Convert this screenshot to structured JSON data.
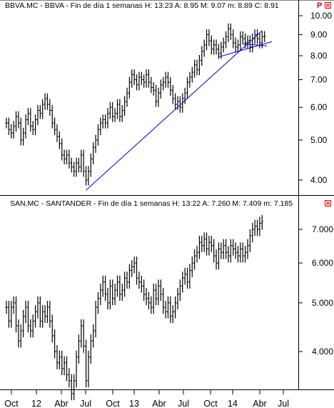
{
  "colors": {
    "background": "#ffffff",
    "bars": "#000000",
    "trendline": "#0000cc",
    "flag_p": "#e00000",
    "flag_box": "#e00000"
  },
  "top_panel": {
    "header": {
      "text": "BBVA.MC - BBVA - Fin de día 1 semanas  H: 13:23  A: 8.95  M: 9.07  m: 8.89  C: 8.91",
      "flag": "P",
      "box_icon": "close-box-icon"
    }
  },
  "bottom_panel": {
    "header": {
      "text": "SAN.MC - SANTANDER - Fin de día 1 semanas  H: 13:22  A: 7.260  M: 7.409  m: 7.185",
      "box_icon": "close-box-icon"
    }
  },
  "chart_data": [
    {
      "type": "ohlc",
      "symbol": "BBVA.MC",
      "name": "BBVA",
      "period": "Fin de día 1 semanas",
      "last_bar": {
        "time": "13:23",
        "open": 8.95,
        "high": 9.07,
        "low": 8.89,
        "close": 8.91
      },
      "y_scale": "log",
      "ylim": [
        3.75,
        10.2
      ],
      "y_ticks": [
        4.0,
        5.0,
        6.0,
        7.0,
        8.0,
        9.0,
        10.0
      ],
      "y_tick_labels": [
        "4.00",
        "5.00",
        "6.00",
        "7.00",
        "8.00",
        "9.00",
        "10.00"
      ],
      "x_labels": [
        "Oct",
        "12",
        "Abr",
        "Jul",
        "Oct",
        "13",
        "Abr",
        "Jul",
        "Oct",
        "14",
        "Abr",
        "Jul"
      ],
      "closes": [
        5.5,
        5.3,
        5.2,
        5.4,
        5.7,
        5.5,
        5.0,
        5.2,
        5.6,
        5.8,
        5.4,
        5.3,
        5.6,
        5.9,
        5.8,
        6.1,
        6.3,
        6.1,
        5.9,
        5.5,
        5.3,
        5.1,
        4.9,
        4.6,
        4.5,
        4.6,
        4.4,
        4.3,
        4.2,
        4.4,
        4.3,
        4.6,
        4.2,
        4.0,
        4.2,
        4.5,
        4.8,
        5.0,
        5.3,
        5.5,
        5.6,
        5.5,
        5.8,
        6.0,
        5.7,
        5.8,
        6.1,
        5.7,
        5.9,
        6.2,
        6.5,
        6.9,
        7.2,
        7.0,
        6.8,
        7.1,
        7.0,
        6.9,
        7.2,
        6.9,
        6.7,
        6.6,
        6.2,
        6.5,
        6.8,
        6.9,
        7.1,
        6.9,
        6.6,
        6.3,
        6.1,
        6.2,
        6.0,
        6.3,
        6.5,
        6.9,
        7.1,
        7.3,
        7.6,
        7.4,
        7.8,
        8.2,
        8.5,
        9.0,
        8.7,
        8.3,
        8.5,
        8.3,
        8.1,
        8.4,
        8.6,
        8.9,
        9.3,
        9.0,
        8.6,
        8.4,
        8.5,
        8.9,
        8.8,
        8.6,
        8.7,
        8.4,
        8.8,
        9.0,
        8.8,
        8.6,
        8.9,
        8.91
      ],
      "trendlines": [
        {
          "from": {
            "bar": 33,
            "value": 3.78
          },
          "to": {
            "bar": 106,
            "value": 9.2
          }
        },
        {
          "from": {
            "bar": 88,
            "value": 7.95
          },
          "to": {
            "bar": 110,
            "value": 8.65
          }
        },
        {
          "from": {
            "bar": 98,
            "value": 8.55
          },
          "to": {
            "bar": 108,
            "value": 8.45
          }
        }
      ]
    },
    {
      "type": "ohlc",
      "symbol": "SAN.MC",
      "name": "SANTANDER",
      "period": "Fin de día 1 semanas",
      "last_bar": {
        "time": "13:22",
        "open": 7.26,
        "high": 7.409,
        "low": 7.185
      },
      "y_scale": "log",
      "ylim": [
        3.2,
        7.8
      ],
      "y_ticks": [
        4.0,
        5.0,
        6.0,
        7.0
      ],
      "y_tick_labels": [
        "4.000",
        "5.000",
        "6.000",
        "7.000"
      ],
      "x_labels": [
        "Oct",
        "12",
        "Abr",
        "Jul",
        "Oct",
        "13",
        "Abr",
        "Jul",
        "Oct",
        "14",
        "Abr",
        "Jul"
      ],
      "closes": [
        4.9,
        4.6,
        4.9,
        5.0,
        4.5,
        4.2,
        4.4,
        4.7,
        4.9,
        4.5,
        4.4,
        4.6,
        4.8,
        5.0,
        4.6,
        4.8,
        4.7,
        4.9,
        4.6,
        4.3,
        4.0,
        3.8,
        3.9,
        3.7,
        3.8,
        3.6,
        3.5,
        3.3,
        3.5,
        3.9,
        4.2,
        4.5,
        4.1,
        3.5,
        3.9,
        4.2,
        4.4,
        4.9,
        5.1,
        5.3,
        5.5,
        5.2,
        5.0,
        5.4,
        5.1,
        5.3,
        5.5,
        5.2,
        5.3,
        5.6,
        5.5,
        5.8,
        5.9,
        6.0,
        5.6,
        5.5,
        5.4,
        5.2,
        5.1,
        5.0,
        4.9,
        5.3,
        5.1,
        5.4,
        5.2,
        4.9,
        4.8,
        5.0,
        4.7,
        4.8,
        5.0,
        5.2,
        5.4,
        5.6,
        5.7,
        5.5,
        5.8,
        6.0,
        6.2,
        6.3,
        6.6,
        6.5,
        6.7,
        6.4,
        6.6,
        6.5,
        6.2,
        6.0,
        6.4,
        6.3,
        6.5,
        6.3,
        6.2,
        6.5,
        6.4,
        6.3,
        6.2,
        6.4,
        6.2,
        6.3,
        6.5,
        6.8,
        7.0,
        7.1,
        7.0,
        7.2,
        7.26
      ]
    }
  ]
}
